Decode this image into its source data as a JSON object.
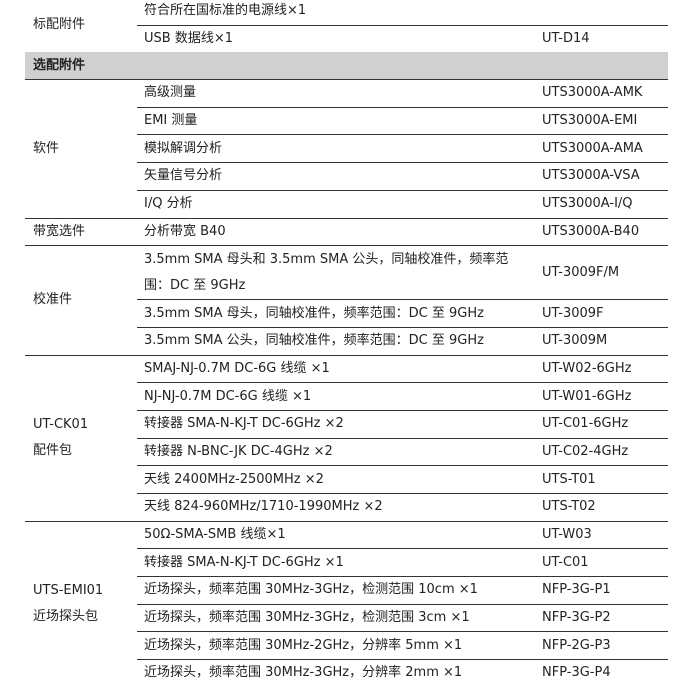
{
  "groups": [
    {
      "name": "标配附件",
      "items": [
        {
          "desc": "符合所在国标准的电源线×1",
          "model": ""
        },
        {
          "desc": "USB  数据线×1",
          "model": "UT-D14"
        }
      ]
    },
    {
      "section": "选配附件"
    },
    {
      "name": "软件",
      "items": [
        {
          "desc": "高级测量",
          "model": "UTS3000A-AMK"
        },
        {
          "desc": "EMI 测量",
          "model": "UTS3000A-EMI"
        },
        {
          "desc": "模拟解调分析",
          "model": "UTS3000A-AMA"
        },
        {
          "desc": "矢量信号分析",
          "model": "UTS3000A-VSA"
        },
        {
          "desc": "I/Q 分析",
          "model": "UTS3000A-I/Q"
        }
      ]
    },
    {
      "name": "带宽选件",
      "items": [
        {
          "desc": "分析带宽 B40",
          "model": "UTS3000A-B40"
        }
      ]
    },
    {
      "name": "校准件",
      "items": [
        {
          "desc": "3.5mm SMA 母头和 3.5mm SMA 公头，同轴校准件，频率范围：DC 至 9GHz",
          "model": "UT-3009F/M"
        },
        {
          "desc": "3.5mm SMA 母头，同轴校准件，频率范围：DC 至 9GHz",
          "model": "UT-3009F"
        },
        {
          "desc": "3.5mm SMA 公头，同轴校准件，频率范围：DC 至 9GHz",
          "model": "UT-3009M"
        }
      ]
    },
    {
      "name": "UT-CK01 配件包",
      "items": [
        {
          "desc": "SMAJ-NJ-0.7M DC-6G 线缆  ×1",
          "model": "UT-W02-6GHz"
        },
        {
          "desc": "NJ-NJ-0.7M DC-6G  线缆  ×1",
          "model": "UT-W01-6GHz"
        },
        {
          "desc": "转接器 SMA-N-KJ-T DC-6GHz  ×2",
          "model": "UT-C01-6GHz"
        },
        {
          "desc": "转接器 N-BNC-JK DC-4GHz  ×2",
          "model": "UT-C02-4GHz"
        },
        {
          "desc": "天线 2400MHz-2500MHz  ×2",
          "model": "UTS-T01"
        },
        {
          "desc": "天线 824-960MHz/1710-1990MHz  ×2",
          "model": "UTS-T02"
        }
      ]
    },
    {
      "name": "UTS-EMI01 近场探头包",
      "items": [
        {
          "desc": "50Ω-SMA-SMB 线缆×1",
          "model": "UT-W03"
        },
        {
          "desc": "转接器 SMA-N-KJ-T DC-6GHz  ×1",
          "model": "UT-C01"
        },
        {
          "desc": "近场探头，频率范围 30MHz-3GHz，检测范围 10cm  ×1",
          "model": "NFP-3G-P1"
        },
        {
          "desc": "近场探头，频率范围 30MHz-3GHz，检测范围 3cm  ×1",
          "model": "NFP-3G-P2"
        },
        {
          "desc": "近场探头，频率范围 30MHz-2GHz，分辨率 5mm  ×1",
          "model": "NFP-2G-P3"
        },
        {
          "desc": "近场探头，频率范围 30MHz-3GHz，分辨率 2mm  ×1",
          "model": "NFP-3G-P4"
        }
      ]
    }
  ]
}
